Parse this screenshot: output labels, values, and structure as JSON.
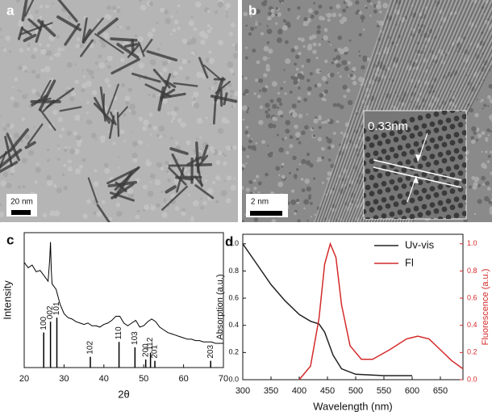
{
  "images": [
    {
      "label": "a",
      "scale_bar": "20 nm"
    },
    {
      "label": "b",
      "scale_bar": "2 nm",
      "annotation": "0.33nm"
    }
  ],
  "chart_data": [
    {
      "type": "line",
      "label": "c",
      "xlabel": "2θ",
      "ylabel": "Intensity",
      "color": "#000000",
      "xlim": [
        20,
        70
      ],
      "xticks": [
        20,
        30,
        40,
        50,
        60,
        70
      ],
      "ylim": [
        0,
        100
      ],
      "x": [
        20,
        21,
        22,
        23,
        24,
        25,
        26,
        26.4,
        26.6,
        26.8,
        27,
        28,
        29,
        30,
        31,
        32,
        33,
        34,
        35,
        36,
        37,
        38,
        39,
        40,
        41,
        42,
        43,
        44,
        45,
        46,
        47,
        48,
        49,
        50,
        51,
        52,
        53,
        54,
        55,
        56,
        57,
        58,
        59,
        60,
        61,
        62,
        63,
        64,
        65,
        66,
        67,
        68,
        69,
        70
      ],
      "values": [
        78,
        74,
        76,
        71,
        72,
        68,
        64,
        80,
        93,
        72,
        62,
        58,
        47,
        40,
        37,
        36,
        34,
        33,
        32,
        33,
        31,
        31,
        30,
        32,
        33,
        35,
        38,
        38,
        33,
        31,
        33,
        35,
        30,
        31,
        34,
        36,
        34,
        30,
        28,
        26,
        25,
        24,
        23,
        22,
        21,
        21,
        20,
        20,
        19,
        19,
        19,
        18,
        18,
        18
      ],
      "sticks": {
        "x": [
          24.9,
          26.6,
          28.2,
          36.6,
          43.8,
          47.8,
          50.5,
          51.7,
          52.8,
          66.8
        ],
        "values": [
          26,
          34,
          37,
          8,
          19,
          15,
          6,
          11,
          5,
          5
        ],
        "labels": [
          "100",
          "002",
          "101",
          "102",
          "110",
          "103",
          "200",
          "112",
          "201",
          "203"
        ]
      }
    },
    {
      "type": "line",
      "label": "d",
      "xlabel": "Wavelength (nm)",
      "ylabel": "Absorption (a.u.)",
      "y2label": "Fluorescence (a.u.)",
      "xlim": [
        300,
        690
      ],
      "xticks": [
        300,
        350,
        400,
        450,
        500,
        550,
        600,
        650
      ],
      "ylim": [
        0,
        1.07
      ],
      "yticks": [
        {
          "value": 0,
          "label": "0.0"
        },
        0.2,
        0.4,
        0.6,
        0.8,
        {
          "value": 1,
          "label": "1.0"
        }
      ],
      "y2lim": [
        0,
        1.07
      ],
      "y2ticks": [
        {
          "value": 0,
          "label": "0.0"
        },
        0.2,
        0.4,
        0.6,
        0.8,
        {
          "value": 1,
          "label": "1.0"
        }
      ],
      "legend": "upper right",
      "series": [
        {
          "name": "Uv-vis",
          "color": "#222222",
          "x": [
            300,
            325,
            350,
            375,
            400,
            420,
            435,
            445,
            460,
            475,
            500,
            550,
            600
          ],
          "values": [
            1.0,
            0.85,
            0.7,
            0.58,
            0.48,
            0.43,
            0.41,
            0.35,
            0.18,
            0.08,
            0.04,
            0.03,
            0.03
          ]
        },
        {
          "name": "Fl",
          "color": "#d42a2a",
          "axis": "y2",
          "x": [
            400,
            420,
            435,
            445,
            455,
            465,
            475,
            490,
            510,
            530,
            560,
            590,
            610,
            630,
            650,
            670,
            690
          ],
          "values": [
            0,
            0.1,
            0.45,
            0.85,
            1.0,
            0.9,
            0.55,
            0.25,
            0.15,
            0.15,
            0.22,
            0.3,
            0.32,
            0.3,
            0.22,
            0.14,
            0.08
          ]
        }
      ]
    }
  ]
}
